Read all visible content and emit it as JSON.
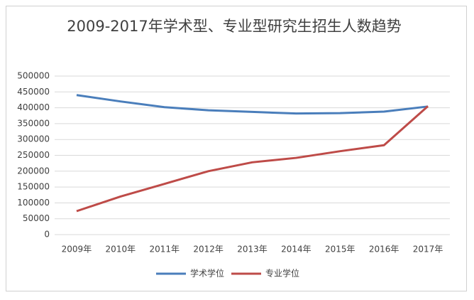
{
  "chart_data": {
    "type": "line",
    "title": "2009-2017年学术型、专业型研究生招生人数趋势",
    "categories": [
      "2009年",
      "2010年",
      "2011年",
      "2012年",
      "2013年",
      "2014年",
      "2015年",
      "2016年",
      "2017年"
    ],
    "series": [
      {
        "name": "学术学位",
        "color": "#4a7ebb",
        "values": [
          440000,
          420000,
          402000,
          392000,
          387000,
          382000,
          383000,
          388000,
          404000
        ]
      },
      {
        "name": "专业学位",
        "color": "#be4b48",
        "values": [
          74000,
          120000,
          160000,
          200000,
          228000,
          242000,
          263000,
          282000,
          405000
        ]
      }
    ],
    "ylim": [
      0,
      500000
    ],
    "yticks": [
      0,
      50000,
      100000,
      150000,
      200000,
      250000,
      300000,
      350000,
      400000,
      450000,
      500000
    ],
    "grid": true,
    "legend": "bottom"
  }
}
